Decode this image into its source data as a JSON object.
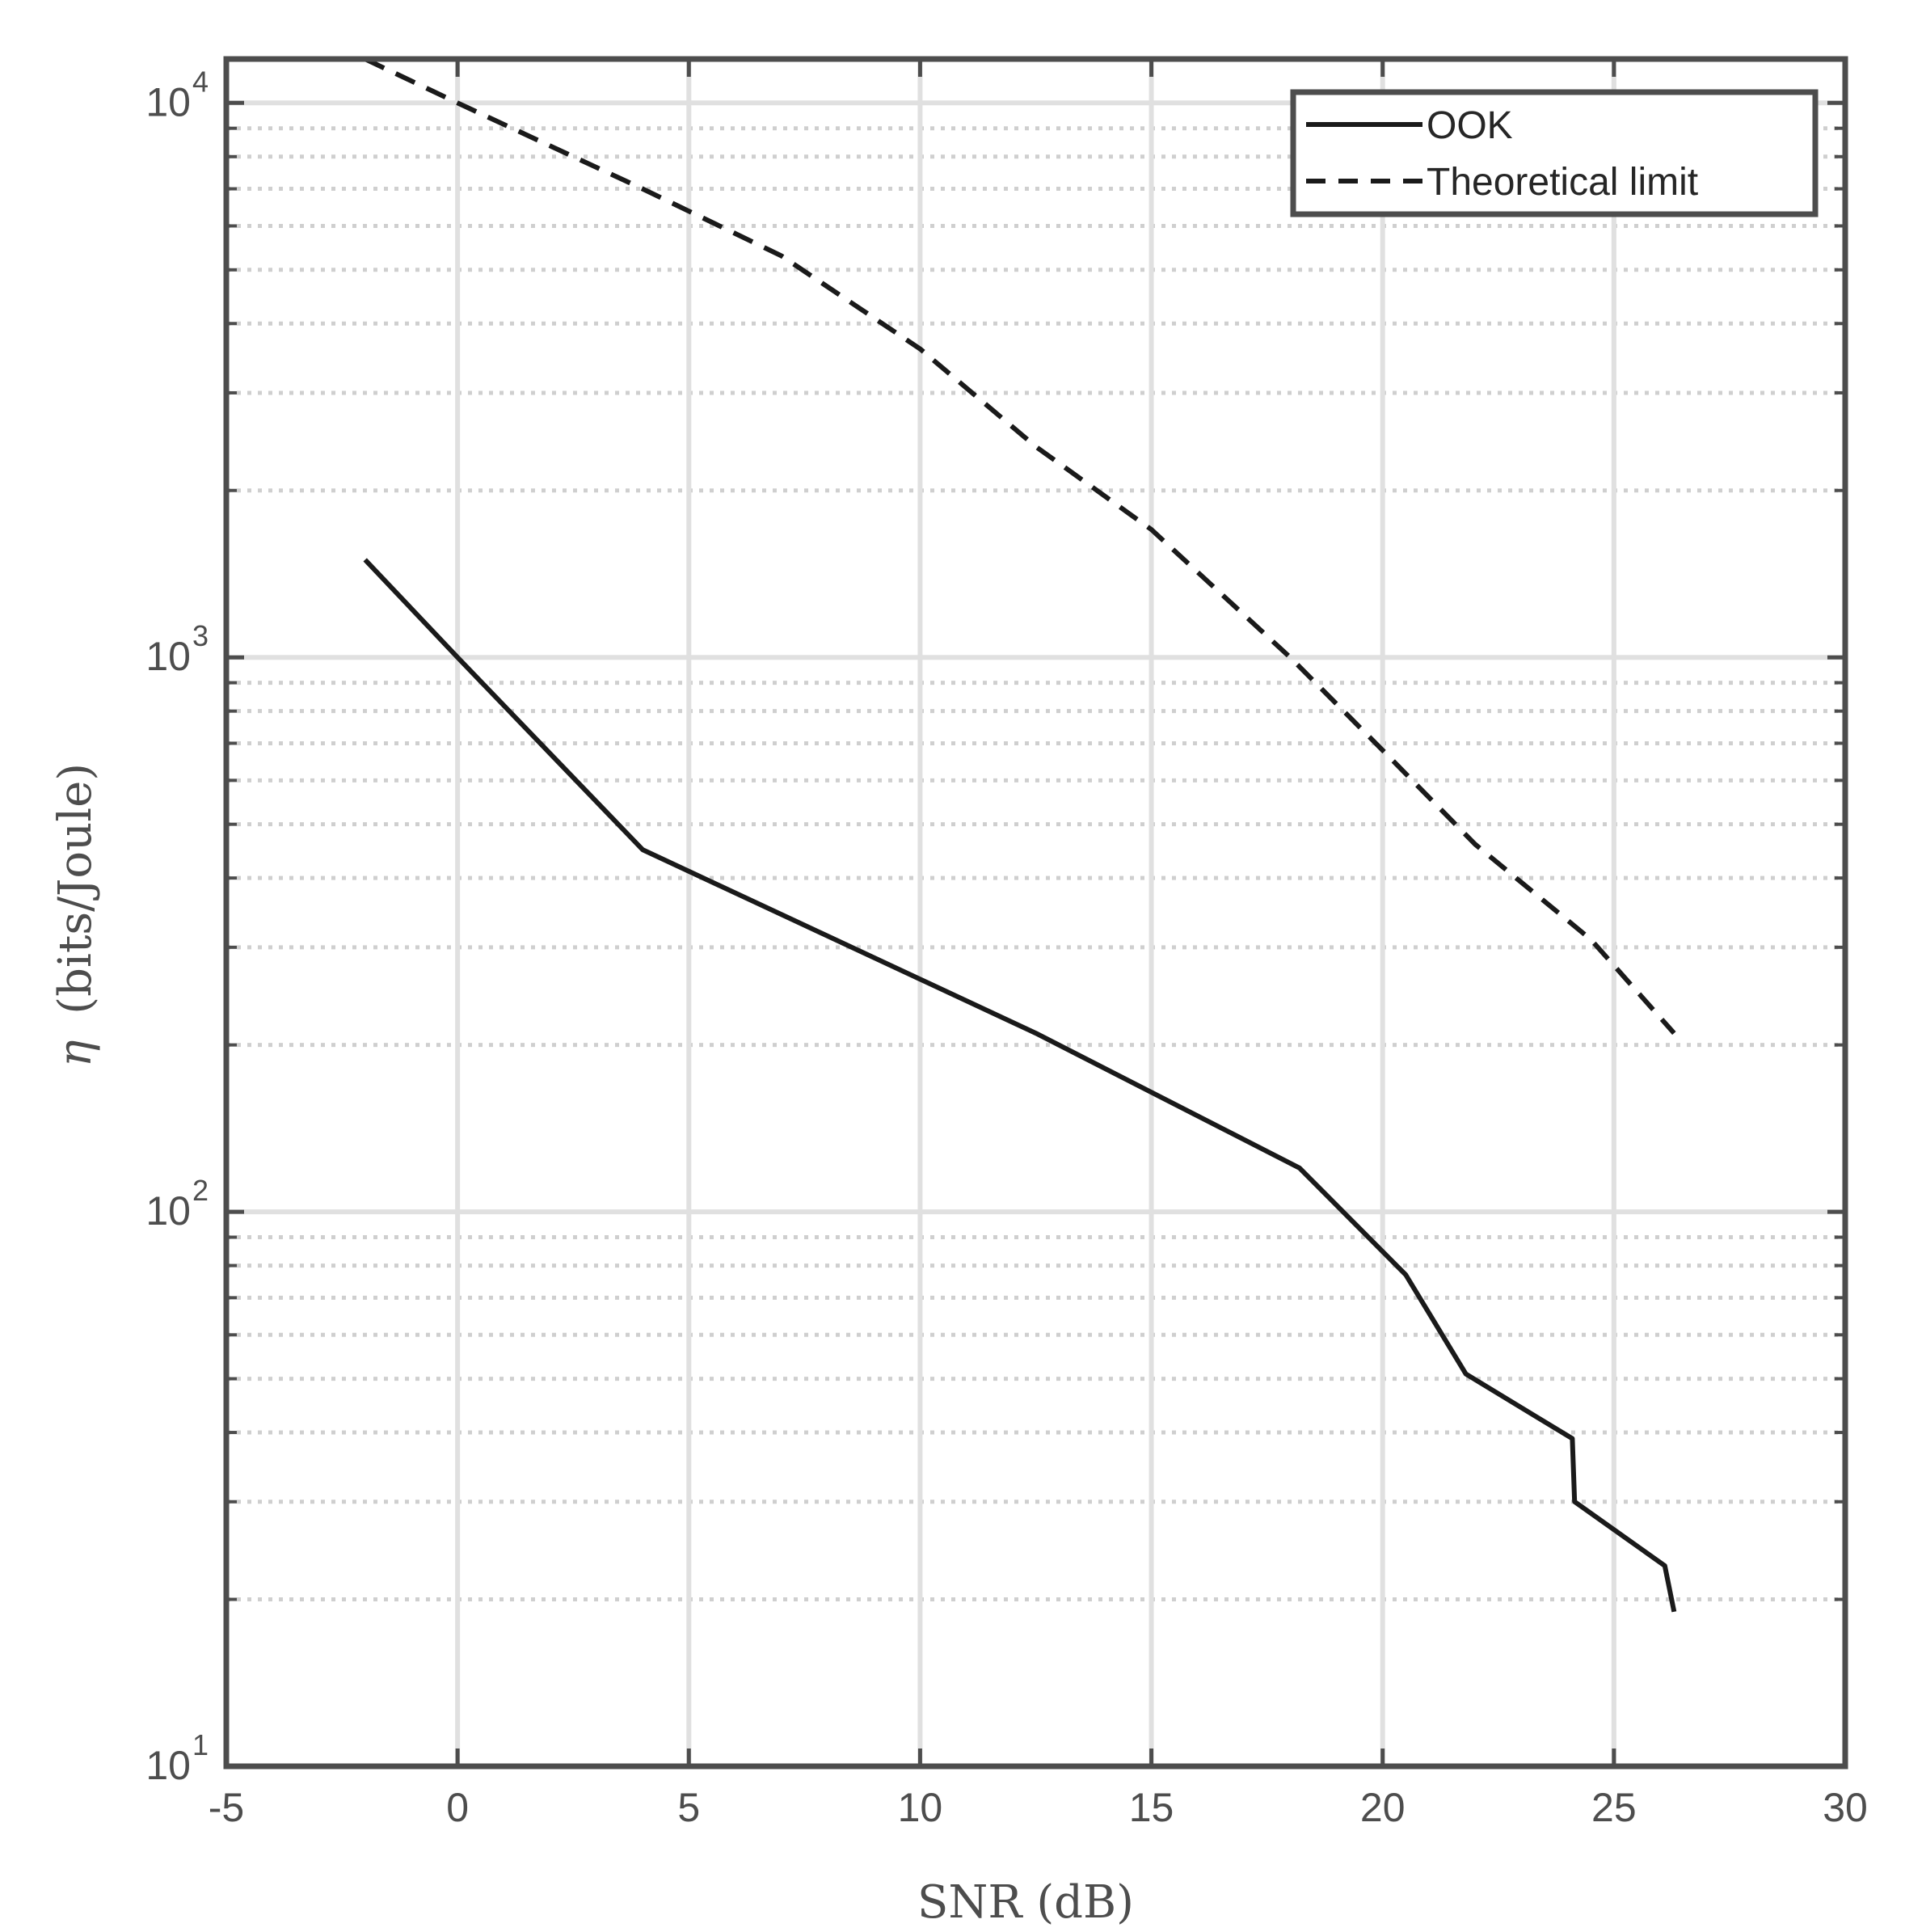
{
  "chart_data": {
    "type": "line",
    "title": "",
    "xlabel": "SNR (dB)",
    "ylabel_symbol": "η",
    "ylabel_text": "(bits/Joule)",
    "xlim": [
      -5,
      30
    ],
    "ylim": [
      10,
      12000
    ],
    "yscale": "log",
    "grid": true,
    "legend_location": "top-right",
    "x_ticks": [
      -5,
      0,
      5,
      10,
      15,
      20,
      25,
      30
    ],
    "x_tick_labels": [
      "-5",
      "0",
      "5",
      "10",
      "15",
      "20",
      "25",
      "30"
    ],
    "y_ticks": [
      {
        "value": 10,
        "base": "10",
        "exp": "1"
      },
      {
        "value": 100,
        "base": "10",
        "exp": "2"
      },
      {
        "value": 1000,
        "base": "10",
        "exp": "3"
      },
      {
        "value": 10000,
        "base": "10",
        "exp": "4"
      }
    ],
    "series": [
      {
        "name": "OOK",
        "style": "solid",
        "color": "#1a1a1a",
        "x": [
          -2,
          0,
          4,
          12.5,
          18.2,
          20.5,
          21.8,
          24.1,
          24.15,
          26.1,
          26.3
        ],
        "y": [
          1500,
          1000,
          450,
          210,
          120,
          77,
          51,
          39,
          30,
          23,
          19
        ]
      },
      {
        "name": "Theoretical limit",
        "style": "dashed",
        "color": "#1a1a1a",
        "x": [
          -2,
          0,
          4,
          7,
          10,
          12.5,
          15,
          18,
          20,
          22,
          24.5,
          26.3
        ],
        "y": [
          12000,
          10000,
          7000,
          5300,
          3600,
          2400,
          1700,
          1000,
          680,
          460,
          310,
          210
        ]
      }
    ],
    "colors": {
      "axes": "#4d4d4d",
      "grid": "#e0e0e0",
      "minor_grid": "#cfcfcf",
      "line": "#1a1a1a"
    }
  }
}
